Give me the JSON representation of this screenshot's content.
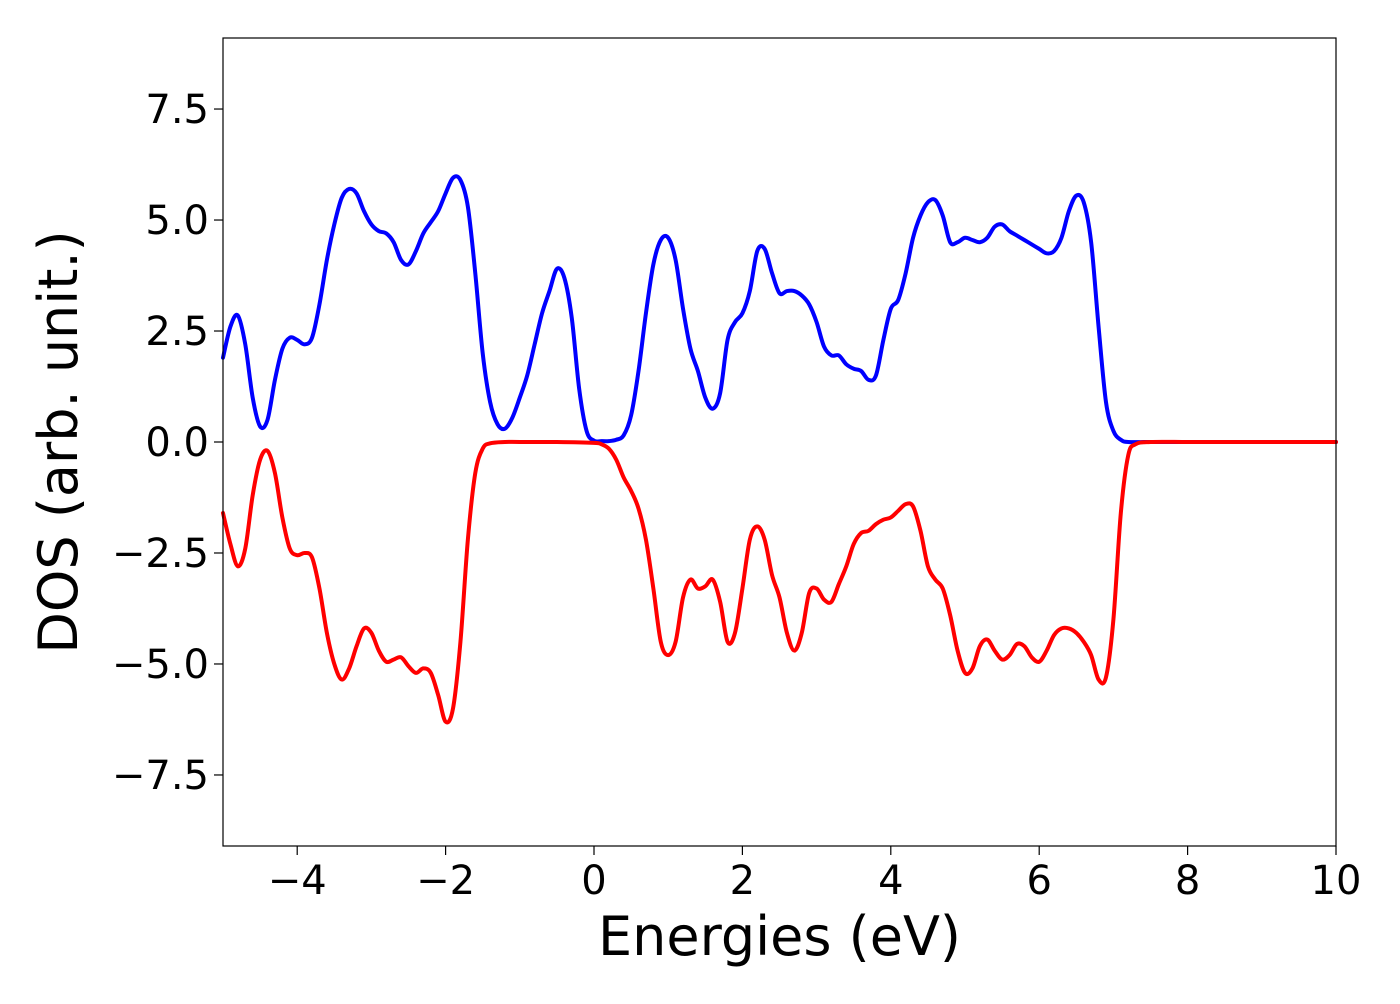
{
  "chart_data": {
    "type": "line",
    "xlabel": "Energies (eV)",
    "ylabel": "DOS (arb. unit.)",
    "xlim": [
      -5,
      10
    ],
    "ylim": [
      -9.1,
      9.1
    ],
    "grid": false,
    "x_ticks": [
      {
        "value": -4,
        "label": "−4"
      },
      {
        "value": -2,
        "label": "−2"
      },
      {
        "value": 0,
        "label": "0"
      },
      {
        "value": 2,
        "label": "2"
      },
      {
        "value": 4,
        "label": "4"
      },
      {
        "value": 6,
        "label": "6"
      },
      {
        "value": 8,
        "label": "8"
      },
      {
        "value": 10,
        "label": "10"
      }
    ],
    "y_ticks": [
      {
        "value": 7.5,
        "label": "7.5"
      },
      {
        "value": 5.0,
        "label": "5.0"
      },
      {
        "value": 2.5,
        "label": "2.5"
      },
      {
        "value": 0.0,
        "label": "0.0"
      },
      {
        "value": -2.5,
        "label": "−2.5"
      },
      {
        "value": -5.0,
        "label": "−5.0"
      },
      {
        "value": -7.5,
        "label": "−7.5"
      }
    ],
    "series": [
      {
        "color": "#0000ff",
        "points": [
          [
            -5.0,
            1.9
          ],
          [
            -4.9,
            2.6
          ],
          [
            -4.8,
            2.85
          ],
          [
            -4.7,
            2.2
          ],
          [
            -4.6,
            1.0
          ],
          [
            -4.5,
            0.35
          ],
          [
            -4.4,
            0.5
          ],
          [
            -4.3,
            1.4
          ],
          [
            -4.2,
            2.1
          ],
          [
            -4.1,
            2.35
          ],
          [
            -4.0,
            2.3
          ],
          [
            -3.9,
            2.2
          ],
          [
            -3.8,
            2.35
          ],
          [
            -3.7,
            3.1
          ],
          [
            -3.6,
            4.1
          ],
          [
            -3.5,
            4.9
          ],
          [
            -3.4,
            5.5
          ],
          [
            -3.3,
            5.7
          ],
          [
            -3.2,
            5.6
          ],
          [
            -3.1,
            5.2
          ],
          [
            -3.0,
            4.9
          ],
          [
            -2.9,
            4.75
          ],
          [
            -2.8,
            4.7
          ],
          [
            -2.7,
            4.5
          ],
          [
            -2.6,
            4.1
          ],
          [
            -2.5,
            4.0
          ],
          [
            -2.4,
            4.3
          ],
          [
            -2.3,
            4.7
          ],
          [
            -2.2,
            4.95
          ],
          [
            -2.1,
            5.2
          ],
          [
            -2.0,
            5.6
          ],
          [
            -1.9,
            5.95
          ],
          [
            -1.8,
            5.9
          ],
          [
            -1.7,
            5.3
          ],
          [
            -1.6,
            3.8
          ],
          [
            -1.5,
            2.0
          ],
          [
            -1.4,
            0.9
          ],
          [
            -1.3,
            0.4
          ],
          [
            -1.2,
            0.3
          ],
          [
            -1.1,
            0.55
          ],
          [
            -1.0,
            1.0
          ],
          [
            -0.9,
            1.5
          ],
          [
            -0.8,
            2.2
          ],
          [
            -0.7,
            2.9
          ],
          [
            -0.6,
            3.4
          ],
          [
            -0.5,
            3.9
          ],
          [
            -0.4,
            3.7
          ],
          [
            -0.3,
            2.8
          ],
          [
            -0.2,
            1.2
          ],
          [
            -0.1,
            0.25
          ],
          [
            0.0,
            0.03
          ],
          [
            0.1,
            0.02
          ],
          [
            0.2,
            0.02
          ],
          [
            0.3,
            0.05
          ],
          [
            0.4,
            0.15
          ],
          [
            0.5,
            0.6
          ],
          [
            0.6,
            1.6
          ],
          [
            0.7,
            2.9
          ],
          [
            0.8,
            4.0
          ],
          [
            0.9,
            4.55
          ],
          [
            1.0,
            4.6
          ],
          [
            1.1,
            4.1
          ],
          [
            1.2,
            3.0
          ],
          [
            1.3,
            2.1
          ],
          [
            1.4,
            1.6
          ],
          [
            1.5,
            1.0
          ],
          [
            1.6,
            0.75
          ],
          [
            1.7,
            1.1
          ],
          [
            1.8,
            2.3
          ],
          [
            1.9,
            2.7
          ],
          [
            2.0,
            2.9
          ],
          [
            2.1,
            3.4
          ],
          [
            2.2,
            4.3
          ],
          [
            2.3,
            4.35
          ],
          [
            2.4,
            3.8
          ],
          [
            2.5,
            3.35
          ],
          [
            2.6,
            3.4
          ],
          [
            2.7,
            3.4
          ],
          [
            2.8,
            3.3
          ],
          [
            2.9,
            3.1
          ],
          [
            3.0,
            2.7
          ],
          [
            3.1,
            2.15
          ],
          [
            3.2,
            1.95
          ],
          [
            3.3,
            1.95
          ],
          [
            3.4,
            1.75
          ],
          [
            3.5,
            1.65
          ],
          [
            3.6,
            1.6
          ],
          [
            3.7,
            1.4
          ],
          [
            3.8,
            1.5
          ],
          [
            3.9,
            2.3
          ],
          [
            4.0,
            3.0
          ],
          [
            4.1,
            3.2
          ],
          [
            4.2,
            3.8
          ],
          [
            4.3,
            4.6
          ],
          [
            4.4,
            5.1
          ],
          [
            4.5,
            5.4
          ],
          [
            4.6,
            5.45
          ],
          [
            4.7,
            5.1
          ],
          [
            4.8,
            4.5
          ],
          [
            4.9,
            4.5
          ],
          [
            5.0,
            4.6
          ],
          [
            5.1,
            4.55
          ],
          [
            5.2,
            4.5
          ],
          [
            5.3,
            4.6
          ],
          [
            5.4,
            4.85
          ],
          [
            5.5,
            4.9
          ],
          [
            5.6,
            4.75
          ],
          [
            5.7,
            4.65
          ],
          [
            5.8,
            4.55
          ],
          [
            5.9,
            4.45
          ],
          [
            6.0,
            4.35
          ],
          [
            6.1,
            4.25
          ],
          [
            6.2,
            4.3
          ],
          [
            6.3,
            4.6
          ],
          [
            6.4,
            5.2
          ],
          [
            6.5,
            5.55
          ],
          [
            6.6,
            5.4
          ],
          [
            6.7,
            4.5
          ],
          [
            6.8,
            2.6
          ],
          [
            6.9,
            0.9
          ],
          [
            7.0,
            0.25
          ],
          [
            7.1,
            0.05
          ],
          [
            7.2,
            0.0
          ],
          [
            7.5,
            0.0
          ],
          [
            8.0,
            0.0
          ],
          [
            8.5,
            0.0
          ],
          [
            9.0,
            0.0
          ],
          [
            9.5,
            0.0
          ],
          [
            10.0,
            0.0
          ]
        ]
      },
      {
        "color": "#ff0000",
        "points": [
          [
            -5.0,
            -1.6
          ],
          [
            -4.9,
            -2.3
          ],
          [
            -4.8,
            -2.8
          ],
          [
            -4.7,
            -2.4
          ],
          [
            -4.6,
            -1.2
          ],
          [
            -4.5,
            -0.4
          ],
          [
            -4.4,
            -0.2
          ],
          [
            -4.3,
            -0.7
          ],
          [
            -4.2,
            -1.7
          ],
          [
            -4.1,
            -2.4
          ],
          [
            -4.0,
            -2.55
          ],
          [
            -3.9,
            -2.5
          ],
          [
            -3.8,
            -2.6
          ],
          [
            -3.7,
            -3.3
          ],
          [
            -3.6,
            -4.3
          ],
          [
            -3.5,
            -5.0
          ],
          [
            -3.4,
            -5.35
          ],
          [
            -3.3,
            -5.1
          ],
          [
            -3.2,
            -4.6
          ],
          [
            -3.1,
            -4.2
          ],
          [
            -3.0,
            -4.3
          ],
          [
            -2.9,
            -4.7
          ],
          [
            -2.8,
            -4.95
          ],
          [
            -2.7,
            -4.9
          ],
          [
            -2.6,
            -4.85
          ],
          [
            -2.5,
            -5.05
          ],
          [
            -2.4,
            -5.2
          ],
          [
            -2.3,
            -5.1
          ],
          [
            -2.2,
            -5.2
          ],
          [
            -2.1,
            -5.7
          ],
          [
            -2.0,
            -6.3
          ],
          [
            -1.9,
            -6.0
          ],
          [
            -1.8,
            -4.5
          ],
          [
            -1.7,
            -2.2
          ],
          [
            -1.6,
            -0.7
          ],
          [
            -1.5,
            -0.15
          ],
          [
            -1.4,
            -0.03
          ],
          [
            -1.2,
            0.0
          ],
          [
            -1.0,
            0.0
          ],
          [
            -0.5,
            0.0
          ],
          [
            0.0,
            -0.02
          ],
          [
            0.1,
            -0.05
          ],
          [
            0.2,
            -0.15
          ],
          [
            0.3,
            -0.4
          ],
          [
            0.4,
            -0.8
          ],
          [
            0.5,
            -1.1
          ],
          [
            0.6,
            -1.5
          ],
          [
            0.7,
            -2.2
          ],
          [
            0.8,
            -3.3
          ],
          [
            0.9,
            -4.5
          ],
          [
            1.0,
            -4.8
          ],
          [
            1.1,
            -4.5
          ],
          [
            1.2,
            -3.5
          ],
          [
            1.3,
            -3.1
          ],
          [
            1.4,
            -3.3
          ],
          [
            1.5,
            -3.25
          ],
          [
            1.6,
            -3.1
          ],
          [
            1.7,
            -3.6
          ],
          [
            1.8,
            -4.5
          ],
          [
            1.9,
            -4.3
          ],
          [
            2.0,
            -3.3
          ],
          [
            2.1,
            -2.2
          ],
          [
            2.2,
            -1.9
          ],
          [
            2.3,
            -2.2
          ],
          [
            2.4,
            -3.0
          ],
          [
            2.5,
            -3.5
          ],
          [
            2.6,
            -4.3
          ],
          [
            2.7,
            -4.7
          ],
          [
            2.8,
            -4.3
          ],
          [
            2.9,
            -3.4
          ],
          [
            3.0,
            -3.3
          ],
          [
            3.1,
            -3.55
          ],
          [
            3.2,
            -3.6
          ],
          [
            3.3,
            -3.2
          ],
          [
            3.4,
            -2.8
          ],
          [
            3.5,
            -2.3
          ],
          [
            3.6,
            -2.05
          ],
          [
            3.7,
            -2.0
          ],
          [
            3.8,
            -1.85
          ],
          [
            3.9,
            -1.75
          ],
          [
            4.0,
            -1.7
          ],
          [
            4.1,
            -1.55
          ],
          [
            4.2,
            -1.4
          ],
          [
            4.3,
            -1.45
          ],
          [
            4.4,
            -2.0
          ],
          [
            4.5,
            -2.8
          ],
          [
            4.6,
            -3.1
          ],
          [
            4.7,
            -3.3
          ],
          [
            4.8,
            -3.9
          ],
          [
            4.9,
            -4.7
          ],
          [
            5.0,
            -5.2
          ],
          [
            5.1,
            -5.1
          ],
          [
            5.2,
            -4.6
          ],
          [
            5.3,
            -4.45
          ],
          [
            5.4,
            -4.7
          ],
          [
            5.5,
            -4.9
          ],
          [
            5.6,
            -4.8
          ],
          [
            5.7,
            -4.55
          ],
          [
            5.8,
            -4.6
          ],
          [
            5.9,
            -4.85
          ],
          [
            6.0,
            -4.95
          ],
          [
            6.1,
            -4.7
          ],
          [
            6.2,
            -4.35
          ],
          [
            6.3,
            -4.2
          ],
          [
            6.4,
            -4.2
          ],
          [
            6.5,
            -4.3
          ],
          [
            6.6,
            -4.5
          ],
          [
            6.7,
            -4.8
          ],
          [
            6.8,
            -5.35
          ],
          [
            6.9,
            -5.3
          ],
          [
            7.0,
            -4.0
          ],
          [
            7.1,
            -1.6
          ],
          [
            7.2,
            -0.3
          ],
          [
            7.3,
            -0.05
          ],
          [
            7.5,
            0.0
          ],
          [
            8.0,
            0.0
          ],
          [
            8.5,
            0.0
          ],
          [
            9.0,
            0.0
          ],
          [
            9.5,
            0.0
          ],
          [
            10.0,
            0.0
          ]
        ]
      }
    ]
  }
}
